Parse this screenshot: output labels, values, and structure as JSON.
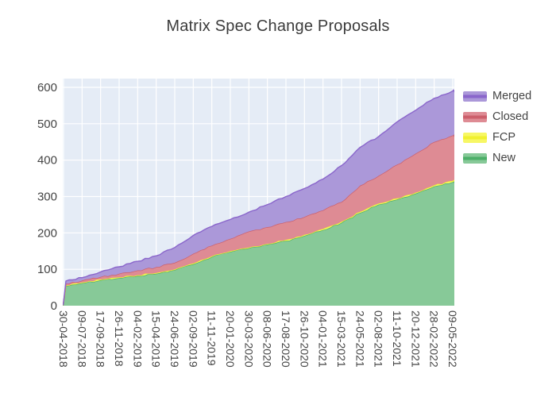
{
  "figure": {
    "title": "Matrix Spec Change Proposals"
  },
  "chart_data": {
    "type": "area",
    "stacked": true,
    "title": "Matrix Spec Change Proposals",
    "xlabel": "",
    "ylabel": "",
    "ylim": [
      0,
      600
    ],
    "yticks": [
      "0",
      "100",
      "200",
      "300",
      "400",
      "500",
      "600"
    ],
    "grid": true,
    "plot_bg": "#e5ecf6",
    "grid_color": "#ffffff",
    "tick_text_color": "#444444",
    "title_color": "#3b3b3b",
    "x_tick_labels": [
      "30-04-2018",
      "09-07-2018",
      "17-09-2018",
      "26-11-2018",
      "04-02-2019",
      "15-04-2019",
      "24-06-2019",
      "02-09-2019",
      "11-11-2019",
      "20-01-2020",
      "30-03-2020",
      "08-06-2020",
      "17-08-2020",
      "26-10-2020",
      "04-01-2021",
      "15-03-2021",
      "24-05-2021",
      "02-08-2021",
      "11-10-2021",
      "20-12-2021",
      "28-02-2022",
      "09-05-2022"
    ],
    "series_bottom_to_top": [
      {
        "name": "New",
        "line_color": "#4caf68",
        "fill_color": "#87c998",
        "values": [
          2,
          62,
          70,
          76,
          82,
          88,
          98,
          114,
          134,
          148,
          158,
          168,
          178,
          192,
          208,
          228,
          255,
          278,
          292,
          308,
          328,
          340
        ]
      },
      {
        "name": "FCP",
        "line_color": "#f0f030",
        "fill_color": "#f7f765",
        "values": [
          0,
          2,
          2,
          2,
          2,
          2,
          2,
          2,
          2,
          2,
          2,
          2,
          3,
          3,
          3,
          3,
          3,
          3,
          3,
          3,
          3,
          3
        ]
      },
      {
        "name": "Closed",
        "line_color": "#cc5f6b",
        "fill_color": "#de8b94",
        "values": [
          1,
          5,
          7,
          10,
          13,
          16,
          18,
          27,
          29,
          34,
          44,
          46,
          49,
          49,
          51,
          54,
          72,
          76,
          93,
          107,
          119,
          125
        ]
      },
      {
        "name": "Merged",
        "line_color": "#8a66cb",
        "fill_color": "#ab98d9",
        "values": [
          0,
          8,
          14,
          19,
          25,
          31,
          42,
          50,
          53,
          53,
          53,
          62,
          70,
          78,
          86,
          100,
          105,
          108,
          117,
          119,
          120,
          122
        ]
      }
    ],
    "legend_order_top_to_bottom": [
      "Merged",
      "Closed",
      "FCP",
      "New"
    ],
    "legend_position": "right-top"
  }
}
